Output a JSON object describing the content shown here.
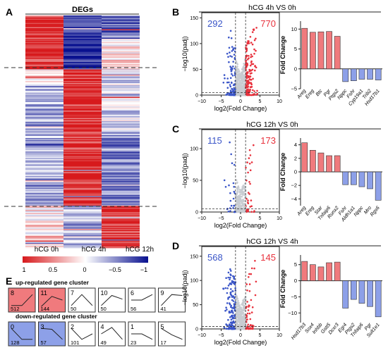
{
  "panels": {
    "A": {
      "letter": "A",
      "title": "DEGs",
      "columns": [
        "hCG 0h",
        "hCG 4h",
        "hCG 12h"
      ],
      "legend_ticks": [
        "1",
        "0.5",
        "0",
        "−0.5",
        "−1"
      ],
      "colors": {
        "high": "#d7191c",
        "mid": "#ffffff",
        "low": "#08108f"
      }
    },
    "B": {
      "letter": "B",
      "title": "hCG 4h VS 0h",
      "down_count": "292",
      "up_count": "770",
      "volcano_xticks": [
        "−10",
        "−5",
        "0",
        "5",
        "10"
      ],
      "volcano_yticks": [
        "0",
        "50",
        "100",
        "150"
      ]
    },
    "C": {
      "letter": "C",
      "title": "hCG 12h VS 0h",
      "down_count": "115",
      "up_count": "173",
      "volcano_xticks": [
        "−10",
        "−5",
        "0",
        "5",
        "10"
      ],
      "volcano_yticks": [
        "0",
        "50",
        "100"
      ]
    },
    "D": {
      "letter": "D",
      "title": "hCG 12h VS 4h",
      "down_count": "568",
      "up_count": "145",
      "volcano_xticks": [
        "−10",
        "−5",
        "0",
        "5",
        "10"
      ],
      "volcano_yticks": [
        "0",
        "50",
        "100",
        "150"
      ]
    },
    "E": {
      "letter": "E",
      "up_label": "up-regulated gene cluster",
      "down_label": "down-regulated gene cluster",
      "up_clusters": [
        {
          "id": "8",
          "count": "512",
          "pattern": [
            0.2,
            0.2,
            0.8
          ]
        },
        {
          "id": "11",
          "count": "144",
          "pattern": [
            0.15,
            0.7,
            0.5
          ]
        },
        {
          "id": "7",
          "count": "50",
          "pattern": [
            0.2,
            0.8,
            0.2
          ]
        },
        {
          "id": "10",
          "count": "50",
          "pattern": [
            0.2,
            0.75,
            0.55
          ]
        },
        {
          "id": "6",
          "count": "56",
          "pattern": [
            0.5,
            0.5,
            0.8
          ]
        },
        {
          "id": "9",
          "count": "41",
          "pattern": [
            0.2,
            0.8,
            0.75
          ]
        }
      ],
      "down_clusters": [
        {
          "id": "0",
          "count": "128",
          "pattern": [
            0.8,
            0.2,
            0.2
          ]
        },
        {
          "id": "3",
          "count": "57",
          "pattern": [
            0.8,
            0.75,
            0.2
          ]
        },
        {
          "id": "2",
          "count": "101",
          "pattern": [
            0.8,
            0.2,
            0.5
          ]
        },
        {
          "id": "4",
          "count": "49",
          "pattern": [
            0.5,
            0.85,
            0.2
          ]
        },
        {
          "id": "1",
          "count": "23",
          "pattern": [
            0.5,
            0.5,
            0.2
          ]
        },
        {
          "id": "5",
          "count": "17",
          "pattern": [
            0.8,
            0.45,
            0.2
          ]
        }
      ]
    }
  },
  "chart_data": [
    {
      "type": "bar",
      "panel": "B",
      "title": "hCG 4h VS 0h",
      "ylabel": "Fold Change",
      "ylim": [
        -5,
        12
      ],
      "yticks": [
        "−5",
        "0",
        "5",
        "10"
      ],
      "categories": [
        "Areg",
        "Ereg",
        "Btc",
        "Pgr",
        "Ptgs2",
        "Nppc",
        "Fshr",
        "Cyp19a1",
        "Trib2",
        "Hsd17b1"
      ],
      "values": [
        10.2,
        9.2,
        9.3,
        9.4,
        8.2,
        -3.2,
        -3.0,
        -2.6,
        -2.6,
        -2.8
      ]
    },
    {
      "type": "bar",
      "panel": "C",
      "title": "hCG 12h VS 0h",
      "ylabel": "Fold Change",
      "ylim": [
        -5,
        5
      ],
      "yticks": [
        "−4",
        "−2",
        "0",
        "2",
        "4"
      ],
      "categories": [
        "Areg",
        "Ereg",
        "Star",
        "Tnfaip6",
        "Runx2",
        "Fshr",
        "Aldh1a1",
        "Nppc",
        "Mro",
        "Rgs6"
      ],
      "values": [
        4.3,
        3.2,
        2.8,
        2.4,
        2.4,
        -1.9,
        -1.9,
        -2.2,
        -2.5,
        -4.2
      ]
    },
    {
      "type": "bar",
      "panel": "D",
      "title": "hCG 12h VS 4h",
      "ylabel": "Fold Change",
      "ylim": [
        -13,
        8
      ],
      "yticks": [
        "−10",
        "−5",
        "0",
        "5"
      ],
      "categories": [
        "Hsd17b3",
        "Sox4",
        "Inhbb",
        "Gstt5",
        "Dcxr3",
        "Egr4",
        "Ptgs2",
        "Tnfaip6",
        "Pgr",
        "Sult1e1"
      ],
      "values": [
        6.0,
        5.0,
        4.3,
        5.6,
        5.8,
        -8.5,
        -5.8,
        -7.0,
        -8.0,
        -11.2
      ]
    },
    {
      "type": "scatter",
      "panel": "B",
      "xlabel": "log2(Fold Change)",
      "ylabel": "−log10(padj)",
      "xlim": [
        -10,
        10
      ],
      "ylim": [
        0,
        160
      ]
    },
    {
      "type": "scatter",
      "panel": "C",
      "xlabel": "log2(Fold Change)",
      "ylabel": "−log10(padj)",
      "xlim": [
        -10,
        10
      ],
      "ylim": [
        0,
        130
      ]
    },
    {
      "type": "scatter",
      "panel": "D",
      "xlabel": "log2(Fold Change)",
      "ylabel": "−log10(padj)",
      "xlim": [
        -10,
        10
      ],
      "ylim": [
        0,
        170
      ]
    }
  ]
}
